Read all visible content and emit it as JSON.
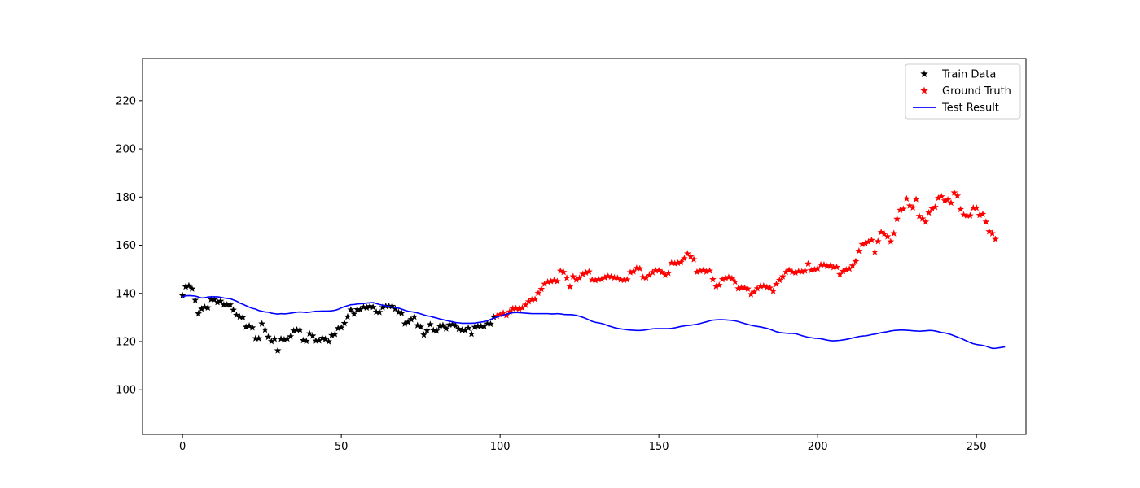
{
  "chart_data": {
    "type": "scatter",
    "title": "",
    "xlabel": "",
    "ylabel": "",
    "xlim": [
      -12.6,
      265.6
    ],
    "ylim": [
      81.5,
      237.5
    ],
    "xticks": [
      0,
      50,
      100,
      150,
      200,
      250
    ],
    "yticks": [
      100,
      120,
      140,
      160,
      180,
      200,
      220
    ],
    "grid": false,
    "legend_position": "top-right",
    "series": [
      {
        "name": "Train Data",
        "kind": "markers",
        "marker": "star",
        "color": "#000000",
        "x_start": 0,
        "y": [
          139.1,
          142.8,
          143.2,
          141.9,
          137.2,
          131.6,
          133.6,
          134.3,
          134.1,
          137.5,
          137.4,
          136.3,
          136.8,
          135.3,
          135.3,
          135.3,
          133.1,
          131.0,
          130.3,
          130.1,
          126.1,
          126.5,
          125.8,
          121.3,
          121.3,
          127.4,
          124.9,
          121.9,
          120.1,
          121.1,
          116.3,
          121.1,
          120.8,
          121.2,
          122.1,
          124.5,
          124.9,
          124.9,
          120.5,
          120.2,
          123.3,
          122.4,
          120.3,
          120.4,
          121.5,
          121.0,
          120.0,
          122.6,
          123.1,
          125.5,
          125.8,
          127.6,
          130.3,
          133.2,
          131.5,
          133.3,
          133.3,
          134.3,
          134.1,
          134.6,
          134.3,
          132.3,
          132.2,
          134.2,
          134.7,
          134.7,
          134.7,
          133.6,
          132.2,
          131.8,
          127.4,
          128.1,
          129.2,
          130.3,
          126.7,
          126.1,
          122.8,
          124.6,
          127.1,
          124.7,
          124.5,
          126.4,
          126.7,
          125.4,
          127.0,
          127.1,
          126.6,
          125.2,
          124.8,
          124.7,
          125.6,
          123.2,
          126.0,
          126.4,
          126.4,
          126.4,
          127.4,
          127.3,
          130.2
        ]
      },
      {
        "name": "Ground Truth",
        "kind": "markers",
        "marker": "star",
        "color": "#ff0000",
        "x_start": 99,
        "y": [
          130.6,
          131.2,
          131.9,
          130.9,
          132.4,
          133.7,
          133.8,
          133.6,
          134.0,
          135.2,
          136.6,
          137.4,
          137.6,
          140.1,
          141.8,
          143.9,
          144.8,
          145.0,
          145.4,
          145.0,
          149.3,
          148.8,
          146.4,
          142.8,
          147.0,
          145.7,
          146.4,
          148.0,
          148.6,
          149.0,
          145.6,
          145.4,
          145.8,
          145.9,
          146.6,
          147.1,
          146.9,
          146.5,
          146.4,
          145.7,
          145.5,
          145.7,
          148.7,
          149.1,
          150.5,
          150.3,
          146.7,
          146.5,
          147.5,
          148.7,
          149.5,
          149.5,
          148.8,
          147.6,
          148.4,
          152.6,
          152.4,
          152.6,
          153.0,
          154.5,
          156.5,
          155.3,
          154.1,
          148.9,
          149.3,
          149.6,
          149.0,
          149.4,
          145.8,
          142.9,
          143.4,
          145.8,
          146.4,
          146.7,
          146.2,
          144.8,
          142.0,
          142.4,
          142.3,
          141.9,
          139.6,
          140.6,
          142.0,
          143.0,
          143.1,
          142.6,
          142.3,
          140.9,
          143.8,
          145.5,
          147.0,
          148.8,
          149.7,
          148.9,
          148.6,
          149.1,
          149.0,
          149.4,
          152.3,
          149.6,
          149.9,
          150.3,
          151.9,
          151.9,
          151.3,
          151.5,
          150.8,
          150.9,
          147.9,
          149.2,
          149.8,
          150.2,
          151.5,
          153.3,
          157.6,
          160.4,
          160.8,
          161.4,
          162.1,
          157.2,
          161.6,
          165.4,
          164.7,
          163.6,
          161.5,
          164.9,
          170.9,
          174.6,
          175.0,
          179.3,
          176.4,
          175.6,
          179.1,
          172.1,
          171.0,
          169.7,
          173.5,
          175.3,
          175.8,
          179.6,
          180.2,
          178.5,
          178.9,
          177.6,
          181.8,
          180.5,
          174.9,
          172.6,
          172.3,
          172.3,
          175.5,
          175.5,
          172.5,
          172.9,
          169.7,
          165.7,
          164.9,
          162.5
        ]
      },
      {
        "name": "Test Result",
        "kind": "line",
        "color": "#0000ff",
        "x_start": 0,
        "y": [
          138.5,
          139.0,
          139.1,
          139.0,
          138.9,
          138.5,
          138.1,
          138.2,
          138.5,
          138.6,
          138.6,
          138.6,
          138.4,
          138.1,
          137.9,
          137.8,
          137.3,
          136.8,
          136.0,
          135.5,
          134.9,
          134.3,
          133.8,
          133.5,
          132.9,
          132.6,
          132.3,
          132.2,
          131.8,
          131.6,
          131.4,
          131.6,
          131.5,
          131.6,
          131.8,
          132.0,
          132.2,
          132.3,
          132.2,
          132.1,
          132.2,
          132.4,
          132.6,
          132.6,
          132.7,
          132.7,
          132.7,
          132.8,
          133.0,
          133.4,
          134.0,
          134.5,
          134.9,
          135.3,
          135.4,
          135.6,
          135.7,
          135.8,
          136.0,
          136.1,
          136.2,
          135.8,
          135.4,
          135.1,
          134.8,
          134.6,
          134.3,
          134.1,
          133.9,
          133.5,
          133.0,
          132.6,
          132.4,
          132.2,
          131.9,
          131.5,
          131.1,
          130.7,
          130.5,
          130.1,
          129.8,
          129.4,
          129.1,
          128.8,
          128.5,
          128.2,
          127.9,
          127.8,
          127.6,
          127.6,
          127.6,
          127.6,
          127.7,
          127.9,
          128.1,
          128.3,
          128.6,
          129.2,
          129.7,
          130.2,
          130.6,
          131.0,
          131.4,
          131.7,
          132.0,
          132.1,
          132.0,
          131.9,
          131.8,
          131.7,
          131.6,
          131.6,
          131.6,
          131.6,
          131.6,
          131.6,
          131.5,
          131.5,
          131.6,
          131.5,
          131.3,
          131.2,
          131.2,
          131.1,
          130.9,
          130.5,
          130.1,
          129.6,
          129.0,
          128.4,
          128.0,
          127.8,
          127.5,
          127.1,
          126.6,
          126.2,
          125.8,
          125.5,
          125.3,
          125.1,
          124.9,
          124.8,
          124.7,
          124.6,
          124.6,
          124.7,
          124.9,
          125.1,
          125.3,
          125.4,
          125.4,
          125.4,
          125.4,
          125.4,
          125.5,
          125.7,
          126.0,
          126.3,
          126.5,
          126.7,
          126.8,
          127.0,
          127.2,
          127.5,
          127.9,
          128.2,
          128.6,
          128.9,
          129.0,
          129.1,
          129.1,
          129.0,
          128.9,
          128.8,
          128.6,
          128.3,
          127.9,
          127.5,
          127.1,
          126.8,
          126.5,
          126.3,
          126.1,
          125.8,
          125.5,
          125.1,
          124.6,
          124.1,
          123.8,
          123.6,
          123.5,
          123.4,
          123.4,
          123.3,
          122.9,
          122.5,
          122.1,
          121.8,
          121.6,
          121.4,
          121.3,
          121.2,
          120.9,
          120.6,
          120.4,
          120.3,
          120.4,
          120.5,
          120.7,
          120.9,
          121.2,
          121.5,
          121.8,
          122.1,
          122.3,
          122.4,
          122.6,
          122.9,
          123.1,
          123.4,
          123.7,
          123.9,
          124.1,
          124.4,
          124.6,
          124.7,
          124.8,
          124.8,
          124.7,
          124.6,
          124.5,
          124.4,
          124.3,
          124.4,
          124.5,
          124.6,
          124.6,
          124.4,
          124.1,
          123.8,
          123.6,
          123.3,
          122.9,
          122.4,
          121.9,
          121.4,
          120.8,
          120.2,
          119.6,
          119.1,
          118.8,
          118.6,
          118.4,
          118.1,
          117.6,
          117.2,
          117.2,
          117.4,
          117.6,
          117.8
        ]
      }
    ]
  }
}
